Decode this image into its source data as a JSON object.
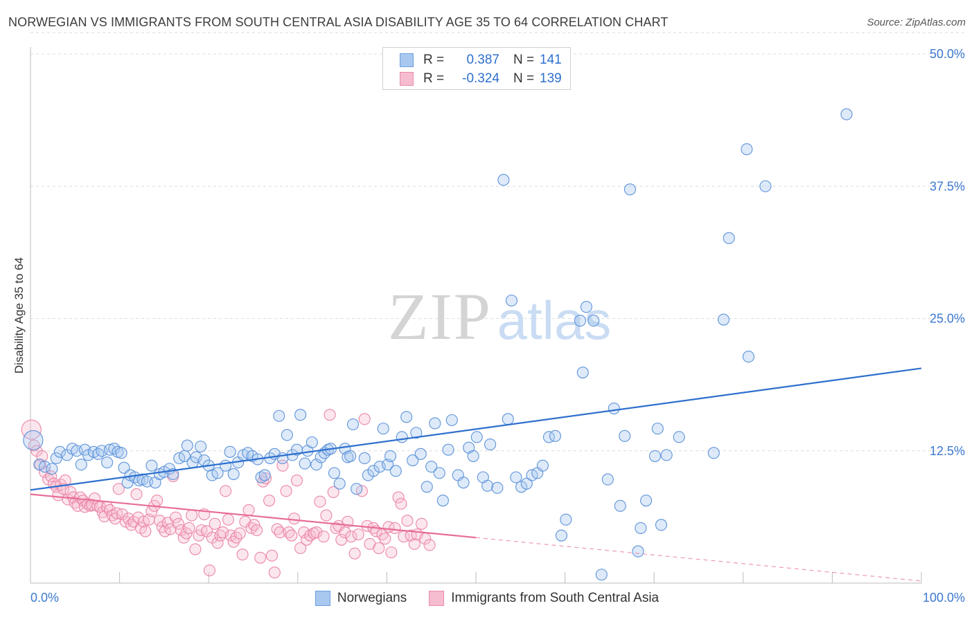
{
  "chart_data": {
    "type": "scatter",
    "title": "NORWEGIAN VS IMMIGRANTS FROM SOUTH CENTRAL ASIA DISABILITY AGE 35 TO 64 CORRELATION CHART",
    "source": "Source: ZipAtlas.com",
    "watermark": {
      "zip": "ZIP",
      "atlas": "atlas"
    },
    "xlabel": "",
    "ylabel": "Disability Age 35 to 64",
    "xlim": [
      0,
      100
    ],
    "ylim": [
      0,
      50
    ],
    "x_tick_labels": [
      "0.0%",
      "100.0%"
    ],
    "y_ticks": [
      12.5,
      25.0,
      37.5,
      50.0
    ],
    "y_tick_labels": [
      "12.5%",
      "25.0%",
      "37.5%",
      "50.0%"
    ],
    "legend_position": "top-center",
    "colors": {
      "blue": "#2d6fce",
      "pink": "#e76d96",
      "blue_fill": "#a9c8f0",
      "pink_fill": "#f6bcd0"
    },
    "stats": [
      {
        "r_label": "R =",
        "r": "0.387",
        "n_label": "N =",
        "n": "141"
      },
      {
        "r_label": "R =",
        "r": "-0.324",
        "n_label": "N =",
        "n": "139"
      }
    ],
    "series": [
      {
        "name": "Norwegians",
        "trend": {
          "x0": 0,
          "y0": 8.8,
          "x1": 100,
          "y1": 20.3,
          "solid_until": 100
        },
        "points": [
          [
            0.3,
            13.5
          ],
          [
            1.0,
            11.2
          ],
          [
            1.6,
            11.0
          ],
          [
            2.4,
            10.8
          ],
          [
            2.9,
            11.8
          ],
          [
            3.3,
            12.4
          ],
          [
            4.1,
            12.1
          ],
          [
            4.7,
            12.7
          ],
          [
            5.2,
            12.5
          ],
          [
            5.7,
            11.2
          ],
          [
            6.1,
            12.6
          ],
          [
            6.5,
            12.1
          ],
          [
            7.1,
            12.4
          ],
          [
            7.6,
            12.2
          ],
          [
            8.0,
            12.5
          ],
          [
            8.6,
            11.4
          ],
          [
            8.9,
            12.6
          ],
          [
            9.4,
            12.7
          ],
          [
            9.8,
            12.4
          ],
          [
            10.2,
            12.3
          ],
          [
            10.5,
            10.9
          ],
          [
            10.9,
            9.5
          ],
          [
            11.2,
            10.2
          ],
          [
            11.7,
            10.0
          ],
          [
            12.2,
            9.7
          ],
          [
            12.6,
            9.8
          ],
          [
            13.1,
            9.6
          ],
          [
            13.6,
            11.1
          ],
          [
            14.0,
            9.5
          ],
          [
            14.5,
            10.3
          ],
          [
            15.0,
            10.5
          ],
          [
            15.6,
            10.8
          ],
          [
            16.0,
            10.3
          ],
          [
            16.7,
            11.8
          ],
          [
            17.3,
            12.0
          ],
          [
            17.6,
            13.0
          ],
          [
            18.2,
            11.4
          ],
          [
            18.6,
            11.9
          ],
          [
            19.1,
            12.9
          ],
          [
            19.5,
            11.6
          ],
          [
            20.0,
            11.1
          ],
          [
            20.4,
            10.2
          ],
          [
            21.0,
            10.4
          ],
          [
            21.9,
            11.1
          ],
          [
            22.4,
            12.4
          ],
          [
            22.8,
            10.3
          ],
          [
            23.3,
            11.4
          ],
          [
            23.9,
            12.1
          ],
          [
            24.4,
            12.3
          ],
          [
            24.9,
            12.0
          ],
          [
            25.5,
            11.7
          ],
          [
            25.9,
            10.0
          ],
          [
            26.3,
            10.2
          ],
          [
            26.9,
            11.8
          ],
          [
            27.4,
            12.2
          ],
          [
            27.9,
            15.8
          ],
          [
            28.3,
            11.8
          ],
          [
            28.8,
            14.0
          ],
          [
            29.4,
            12.1
          ],
          [
            29.9,
            12.6
          ],
          [
            30.3,
            15.9
          ],
          [
            30.8,
            11.3
          ],
          [
            31.1,
            12.5
          ],
          [
            31.6,
            13.3
          ],
          [
            32.1,
            11.2
          ],
          [
            32.6,
            11.9
          ],
          [
            33.0,
            12.3
          ],
          [
            33.4,
            12.6
          ],
          [
            33.7,
            12.7
          ],
          [
            34.1,
            10.4
          ],
          [
            34.7,
            9.4
          ],
          [
            35.3,
            12.7
          ],
          [
            35.6,
            11.9
          ],
          [
            35.9,
            12.0
          ],
          [
            36.2,
            15.0
          ],
          [
            36.6,
            8.9
          ],
          [
            37.5,
            11.8
          ],
          [
            37.9,
            10.2
          ],
          [
            38.5,
            10.6
          ],
          [
            39.2,
            11.0
          ],
          [
            39.6,
            14.6
          ],
          [
            40.1,
            11.2
          ],
          [
            40.4,
            12.0
          ],
          [
            41.0,
            10.6
          ],
          [
            41.7,
            13.8
          ],
          [
            42.2,
            15.7
          ],
          [
            42.9,
            11.6
          ],
          [
            43.3,
            14.2
          ],
          [
            43.8,
            12.2
          ],
          [
            44.5,
            9.1
          ],
          [
            45.0,
            11.0
          ],
          [
            45.4,
            15.1
          ],
          [
            45.9,
            10.4
          ],
          [
            46.3,
            7.8
          ],
          [
            46.9,
            12.6
          ],
          [
            47.3,
            15.4
          ],
          [
            48.0,
            10.2
          ],
          [
            48.6,
            9.5
          ],
          [
            49.2,
            12.8
          ],
          [
            49.7,
            12.0
          ],
          [
            50.1,
            13.8
          ],
          [
            50.8,
            10.0
          ],
          [
            51.3,
            9.2
          ],
          [
            51.6,
            13.1
          ],
          [
            52.4,
            9.0
          ],
          [
            53.1,
            38.1
          ],
          [
            53.6,
            15.5
          ],
          [
            54.0,
            26.7
          ],
          [
            54.5,
            10.0
          ],
          [
            55.1,
            9.1
          ],
          [
            55.7,
            9.4
          ],
          [
            56.3,
            10.2
          ],
          [
            56.9,
            10.4
          ],
          [
            57.5,
            11.1
          ],
          [
            58.2,
            13.8
          ],
          [
            58.9,
            13.9
          ],
          [
            59.6,
            4.5
          ],
          [
            60.1,
            6.0
          ],
          [
            61.7,
            24.8
          ],
          [
            62.0,
            19.9
          ],
          [
            62.4,
            26.1
          ],
          [
            63.2,
            24.8
          ],
          [
            64.1,
            0.8
          ],
          [
            64.8,
            9.8
          ],
          [
            65.5,
            16.5
          ],
          [
            66.2,
            7.3
          ],
          [
            66.7,
            13.9
          ],
          [
            67.3,
            37.2
          ],
          [
            68.2,
            3.0
          ],
          [
            68.5,
            5.2
          ],
          [
            69.1,
            7.8
          ],
          [
            70.1,
            12.0
          ],
          [
            70.4,
            14.6
          ],
          [
            70.8,
            5.5
          ],
          [
            71.4,
            12.1
          ],
          [
            72.8,
            13.8
          ],
          [
            76.7,
            12.3
          ],
          [
            77.8,
            24.9
          ],
          [
            78.4,
            32.6
          ],
          [
            80.4,
            41.0
          ],
          [
            80.6,
            21.4
          ],
          [
            82.5,
            37.5
          ],
          [
            91.6,
            44.3
          ]
        ]
      },
      {
        "name": "Immigrants from South Central Asia",
        "trend": {
          "x0": 0,
          "y0": 8.4,
          "x1": 100,
          "y1": 0.2,
          "solid_until": 50
        },
        "points": [
          [
            0.1,
            14.5
          ],
          [
            0.4,
            13.0
          ],
          [
            0.7,
            12.5
          ],
          [
            1.1,
            11.2
          ],
          [
            1.3,
            12.0
          ],
          [
            1.6,
            10.5
          ],
          [
            2.0,
            9.8
          ],
          [
            2.3,
            10.1
          ],
          [
            2.6,
            9.4
          ],
          [
            2.9,
            9.1
          ],
          [
            3.1,
            8.3
          ],
          [
            3.4,
            9.3
          ],
          [
            3.7,
            8.9
          ],
          [
            3.9,
            9.7
          ],
          [
            4.2,
            7.9
          ],
          [
            4.5,
            8.6
          ],
          [
            4.8,
            8.1
          ],
          [
            5.0,
            7.6
          ],
          [
            5.3,
            7.3
          ],
          [
            5.6,
            8.1
          ],
          [
            5.9,
            7.8
          ],
          [
            6.1,
            7.2
          ],
          [
            6.4,
            7.5
          ],
          [
            6.7,
            7.3
          ],
          [
            6.9,
            7.4
          ],
          [
            7.2,
            8.0
          ],
          [
            7.5,
            7.3
          ],
          [
            7.8,
            7.2
          ],
          [
            8.1,
            6.7
          ],
          [
            8.3,
            6.3
          ],
          [
            8.6,
            7.2
          ],
          [
            8.9,
            6.9
          ],
          [
            9.2,
            6.4
          ],
          [
            9.5,
            6.1
          ],
          [
            9.7,
            6.6
          ],
          [
            9.9,
            8.9
          ],
          [
            10.3,
            6.5
          ],
          [
            10.7,
            5.8
          ],
          [
            11.0,
            6.1
          ],
          [
            11.3,
            5.5
          ],
          [
            11.6,
            5.8
          ],
          [
            11.9,
            8.4
          ],
          [
            12.1,
            6.2
          ],
          [
            12.4,
            5.2
          ],
          [
            12.7,
            5.8
          ],
          [
            12.9,
            4.9
          ],
          [
            13.3,
            6.0
          ],
          [
            13.6,
            6.8
          ],
          [
            13.9,
            7.3
          ],
          [
            14.2,
            7.8
          ],
          [
            14.5,
            5.9
          ],
          [
            14.8,
            5.3
          ],
          [
            15.1,
            4.9
          ],
          [
            15.4,
            5.7
          ],
          [
            15.7,
            5.1
          ],
          [
            16.0,
            10.1
          ],
          [
            16.3,
            6.2
          ],
          [
            16.6,
            5.6
          ],
          [
            16.9,
            5.0
          ],
          [
            17.2,
            4.3
          ],
          [
            17.5,
            4.7
          ],
          [
            17.8,
            5.2
          ],
          [
            18.1,
            6.4
          ],
          [
            18.5,
            3.2
          ],
          [
            18.9,
            4.5
          ],
          [
            19.2,
            5.0
          ],
          [
            19.5,
            6.5
          ],
          [
            19.8,
            4.9
          ],
          [
            20.1,
            1.2
          ],
          [
            20.4,
            4.3
          ],
          [
            20.7,
            5.6
          ],
          [
            21.0,
            3.8
          ],
          [
            21.3,
            4.5
          ],
          [
            21.6,
            4.8
          ],
          [
            21.9,
            8.7
          ],
          [
            22.2,
            6.0
          ],
          [
            22.5,
            4.5
          ],
          [
            22.8,
            3.9
          ],
          [
            23.1,
            4.3
          ],
          [
            23.5,
            4.7
          ],
          [
            23.8,
            2.7
          ],
          [
            24.1,
            5.8
          ],
          [
            24.5,
            6.9
          ],
          [
            24.8,
            5.2
          ],
          [
            25.1,
            5.5
          ],
          [
            25.4,
            5.0
          ],
          [
            25.8,
            2.4
          ],
          [
            26.1,
            9.6
          ],
          [
            26.4,
            9.9
          ],
          [
            26.8,
            7.8
          ],
          [
            27.1,
            2.6
          ],
          [
            27.4,
            1.0
          ],
          [
            27.7,
            5.1
          ],
          [
            28.0,
            4.8
          ],
          [
            28.3,
            11.1
          ],
          [
            28.7,
            8.7
          ],
          [
            29.0,
            4.8
          ],
          [
            29.3,
            4.5
          ],
          [
            29.6,
            6.1
          ],
          [
            29.9,
            9.7
          ],
          [
            30.3,
            3.3
          ],
          [
            30.7,
            4.8
          ],
          [
            31.0,
            4.1
          ],
          [
            31.4,
            4.5
          ],
          [
            31.8,
            4.7
          ],
          [
            32.1,
            4.8
          ],
          [
            32.5,
            7.7
          ],
          [
            32.9,
            4.4
          ],
          [
            33.2,
            6.4
          ],
          [
            33.6,
            15.9
          ],
          [
            34.0,
            8.6
          ],
          [
            34.3,
            5.2
          ],
          [
            34.6,
            5.4
          ],
          [
            34.9,
            4.1
          ],
          [
            35.3,
            4.8
          ],
          [
            35.6,
            5.8
          ],
          [
            36.0,
            4.4
          ],
          [
            36.4,
            2.8
          ],
          [
            36.8,
            4.6
          ],
          [
            37.2,
            8.7
          ],
          [
            37.5,
            15.5
          ],
          [
            37.8,
            5.4
          ],
          [
            38.1,
            3.7
          ],
          [
            38.5,
            5.2
          ],
          [
            38.8,
            4.9
          ],
          [
            39.1,
            3.3
          ],
          [
            39.5,
            4.6
          ],
          [
            39.8,
            4.2
          ],
          [
            40.2,
            5.3
          ],
          [
            40.5,
            2.9
          ],
          [
            40.9,
            5.2
          ],
          [
            41.3,
            8.1
          ],
          [
            41.6,
            7.5
          ],
          [
            41.9,
            4.4
          ],
          [
            42.3,
            5.9
          ],
          [
            42.7,
            4.5
          ],
          [
            43.1,
            3.7
          ],
          [
            43.4,
            4.6
          ],
          [
            43.9,
            5.6
          ],
          [
            44.3,
            4.2
          ],
          [
            44.8,
            3.6
          ]
        ]
      }
    ]
  }
}
